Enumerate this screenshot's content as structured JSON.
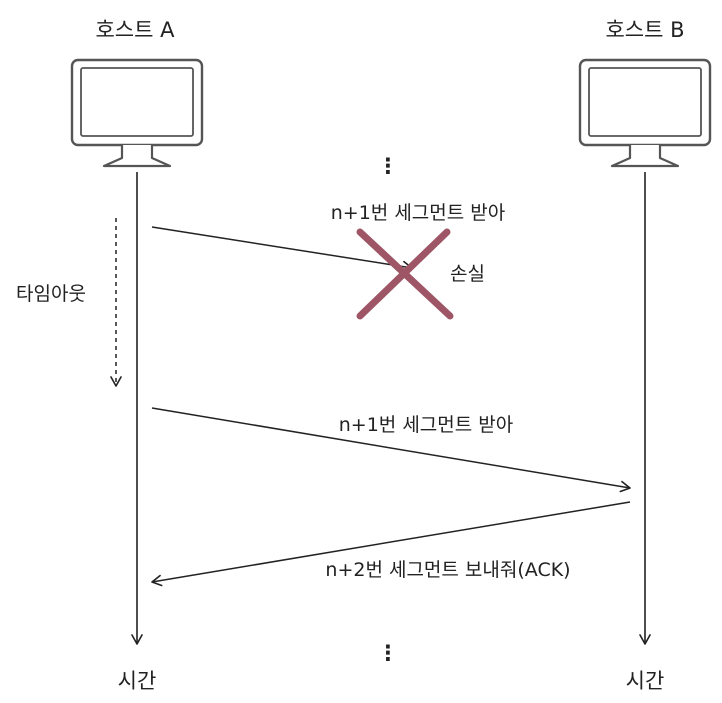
{
  "hosts": {
    "a": {
      "label": "호스트 A",
      "time_label": "시간"
    },
    "b": {
      "label": "호스트 B",
      "time_label": "시간"
    }
  },
  "messages": [
    {
      "label": "n+1번 세그먼트 받아",
      "status": "손실"
    },
    {
      "label": "n+1번 세그먼트 받아"
    },
    {
      "label": "n+2번 세그먼트 보내줘(ACK)"
    }
  ],
  "timeout_label": "타임아웃",
  "continuation_top": "⋮",
  "continuation_bottom": "⋮",
  "colors": {
    "line": "#222222",
    "loss_mark": "#9e5566",
    "screen_frame": "#555555",
    "screen_fill": "#ffffff"
  }
}
